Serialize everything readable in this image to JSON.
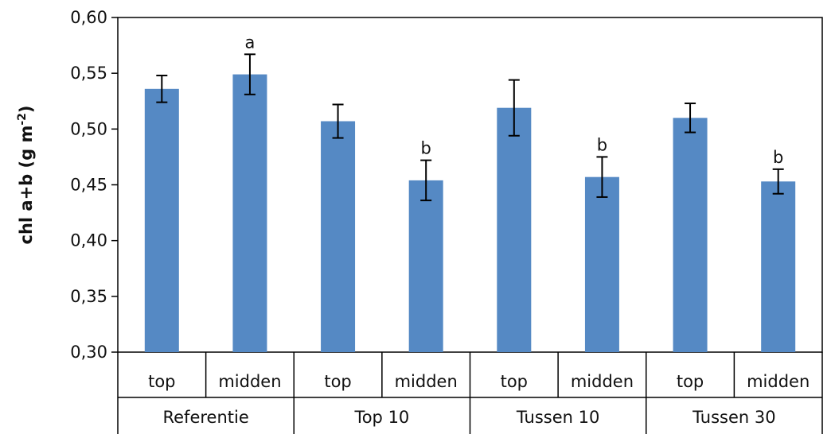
{
  "chart_data": {
    "type": "bar",
    "title": "",
    "xlabel": "",
    "ylabel": "chl a+b (g m",
    "ylabel_sup": "-2",
    "ylabel_close": ")",
    "ylim": [
      0.3,
      0.6
    ],
    "yticks": [
      "0,30",
      "0,35",
      "0,40",
      "0,45",
      "0,50",
      "0,55",
      "0,60"
    ],
    "ytick_values": [
      0.3,
      0.35,
      0.4,
      0.45,
      0.5,
      0.55,
      0.6
    ],
    "groups": [
      "Referentie",
      "Top 10",
      "Tussen 10",
      "Tussen 30"
    ],
    "categories": [
      "top",
      "midden",
      "top",
      "midden",
      "top",
      "midden",
      "top",
      "midden"
    ],
    "values": [
      0.536,
      0.549,
      0.507,
      0.454,
      0.519,
      0.457,
      0.51,
      0.453
    ],
    "errors": [
      0.012,
      0.018,
      0.015,
      0.018,
      0.025,
      0.018,
      0.013,
      0.011
    ],
    "significance": [
      "",
      "a",
      "",
      "b",
      "",
      "b",
      "",
      "b"
    ],
    "bar_color": "#5589c4",
    "grid": false
  }
}
